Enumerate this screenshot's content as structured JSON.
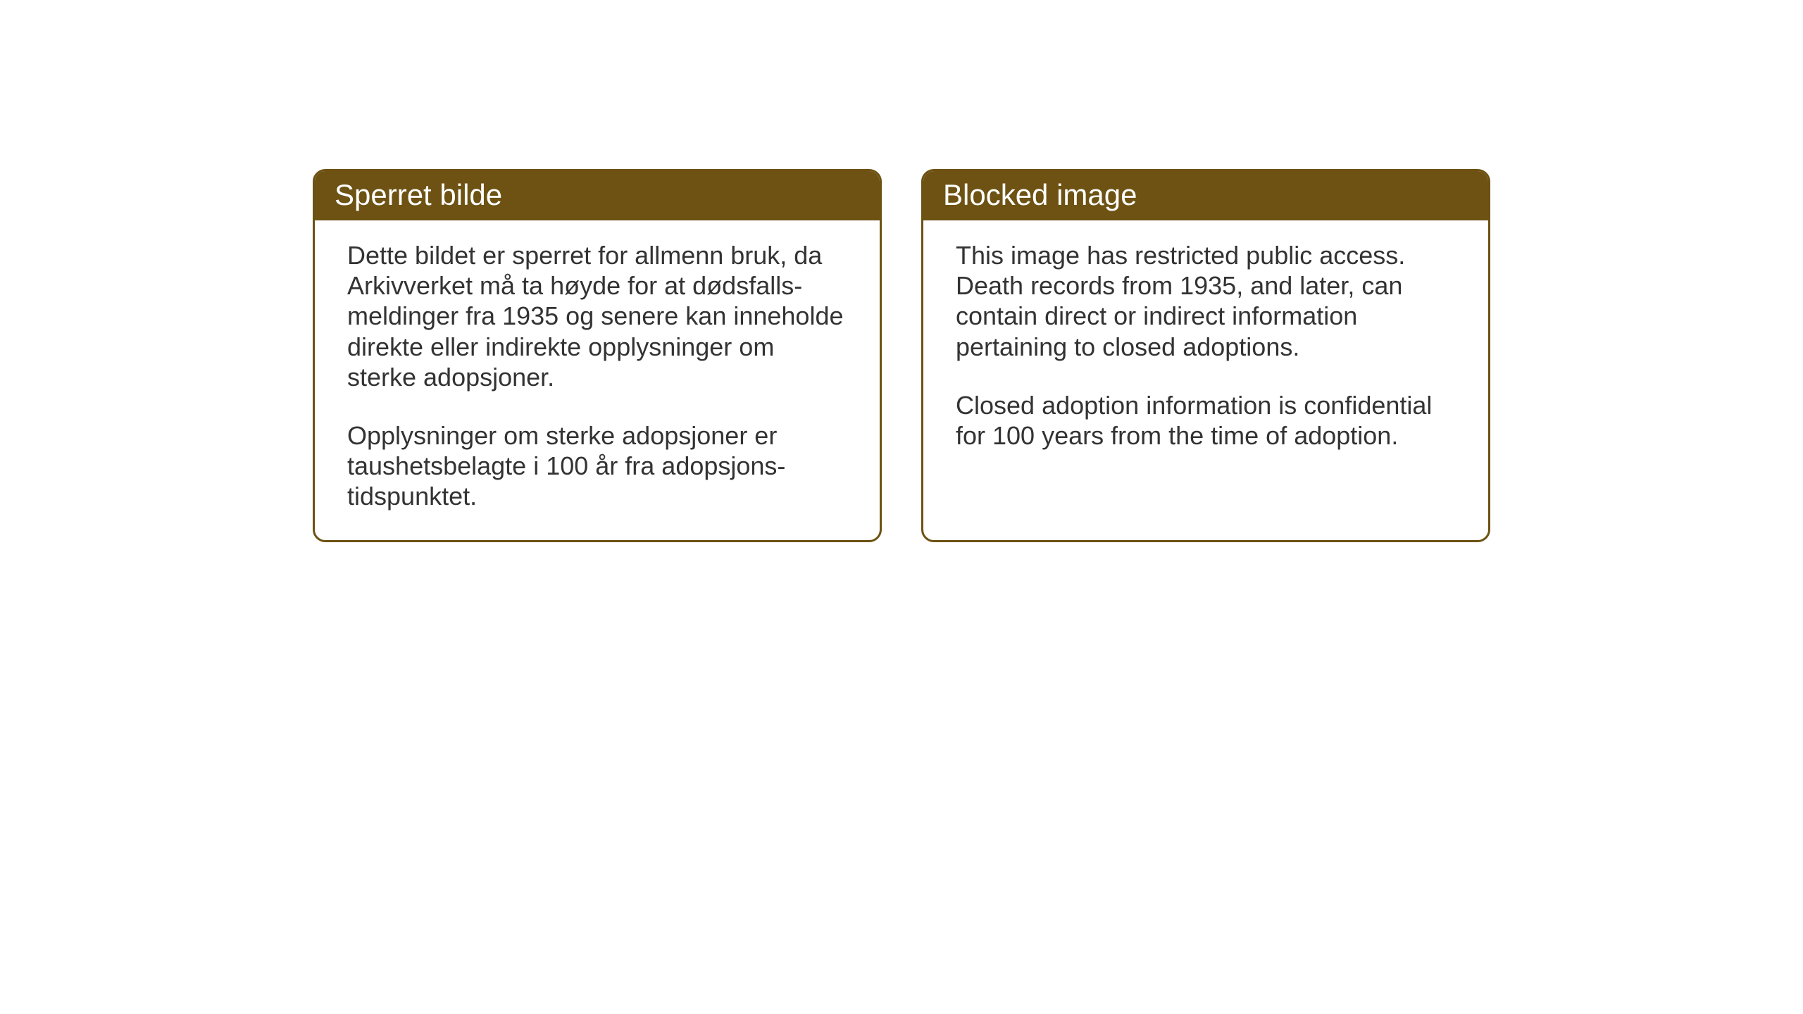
{
  "layout": {
    "background_color": "#ffffff",
    "card_border_color": "#6d5213",
    "header_background_color": "#6d5213",
    "header_text_color": "#ffffff",
    "body_text_color": "#333333",
    "card_border_radius": 18,
    "card_border_width": 3,
    "header_fontsize": 42,
    "body_fontsize": 36
  },
  "left_card": {
    "title": "Sperret bilde",
    "paragraph1": "Dette bildet er sperret for allmenn bruk, da Arkivverket må ta høyde for at dødsfalls-meldinger fra 1935 og senere kan inneholde direkte eller indirekte opplysninger om sterke adopsjoner.",
    "paragraph2": "Opplysninger om sterke adopsjoner er taushetsbelagte i 100 år fra adopsjons-tidspunktet."
  },
  "right_card": {
    "title": "Blocked image",
    "paragraph1": "This image has restricted public access. Death records from 1935, and later, can contain direct or indirect information pertaining to closed adoptions.",
    "paragraph2": "Closed adoption information is confidential for 100 years from the time of adoption."
  }
}
